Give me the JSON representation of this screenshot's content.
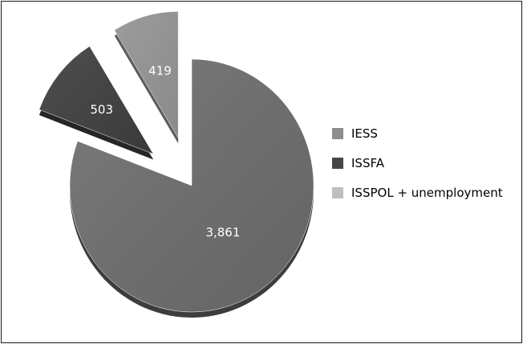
{
  "chart_data": {
    "type": "pie",
    "style": "3d-exploded",
    "labels": [
      "IESS",
      "ISSFA",
      "ISSPOL + unemployment"
    ],
    "values": [
      3861,
      503,
      419
    ],
    "value_labels": [
      "3,861",
      "503",
      "419"
    ],
    "colors": [
      "#8d8d8d",
      "#464646",
      "#bfbfbf"
    ],
    "legend_position": "right"
  }
}
